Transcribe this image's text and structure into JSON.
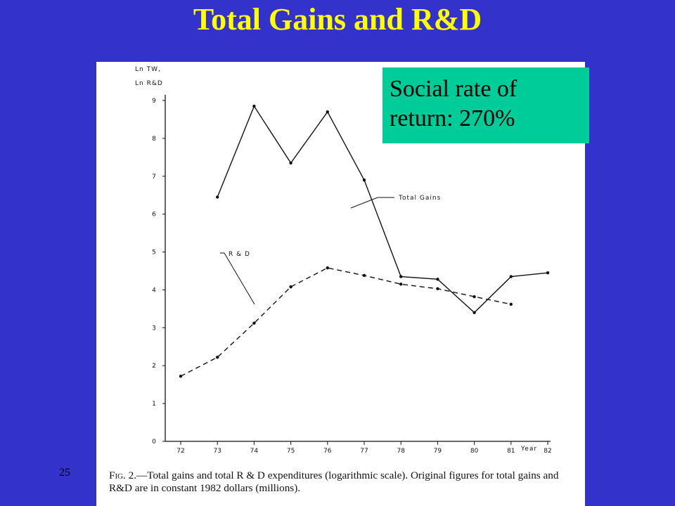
{
  "slide": {
    "title": "Total Gains and R&D",
    "number": "25"
  },
  "callout": {
    "line1": "Social rate of",
    "line2": "return: 270%",
    "color": "#00cc99"
  },
  "caption": {
    "fig_label": "Fig. 2.",
    "text": "—Total gains and total R & D expenditures (logarithmic scale). Original figures for total gains and R&D are in constant 1982 dollars (millions)."
  },
  "chart_data": {
    "type": "line",
    "ylabel_line1": "Ln TW,",
    "ylabel_line2": "Ln R&D",
    "xlabel": "Year",
    "ylim": [
      0,
      9
    ],
    "yticks": [
      0,
      1,
      2,
      3,
      4,
      5,
      6,
      7,
      8,
      9
    ],
    "xticks": [
      "72",
      "73",
      "74",
      "75",
      "76",
      "77",
      "78",
      "79",
      "80",
      "81",
      "82"
    ],
    "series": [
      {
        "name": "Total Gains",
        "style": "solid",
        "points": [
          {
            "x": 73,
            "y": 6.45
          },
          {
            "x": 74,
            "y": 8.85
          },
          {
            "x": 75,
            "y": 7.35
          },
          {
            "x": 76,
            "y": 8.7
          },
          {
            "x": 77,
            "y": 6.9
          },
          {
            "x": 78,
            "y": 4.35
          },
          {
            "x": 79,
            "y": 4.28
          },
          {
            "x": 80,
            "y": 3.4
          },
          {
            "x": 81,
            "y": 4.35
          },
          {
            "x": 82,
            "y": 4.45
          }
        ]
      },
      {
        "name": "R & D",
        "style": "dashed",
        "points": [
          {
            "x": 72,
            "y": 1.72
          },
          {
            "x": 73,
            "y": 2.22
          },
          {
            "x": 74,
            "y": 3.12
          },
          {
            "x": 75,
            "y": 4.08
          },
          {
            "x": 76,
            "y": 4.58
          },
          {
            "x": 77,
            "y": 4.38
          },
          {
            "x": 78,
            "y": 4.15
          },
          {
            "x": 79,
            "y": 4.03
          },
          {
            "x": 80,
            "y": 3.82
          },
          {
            "x": 81,
            "y": 3.62
          }
        ]
      }
    ],
    "grid": false
  }
}
